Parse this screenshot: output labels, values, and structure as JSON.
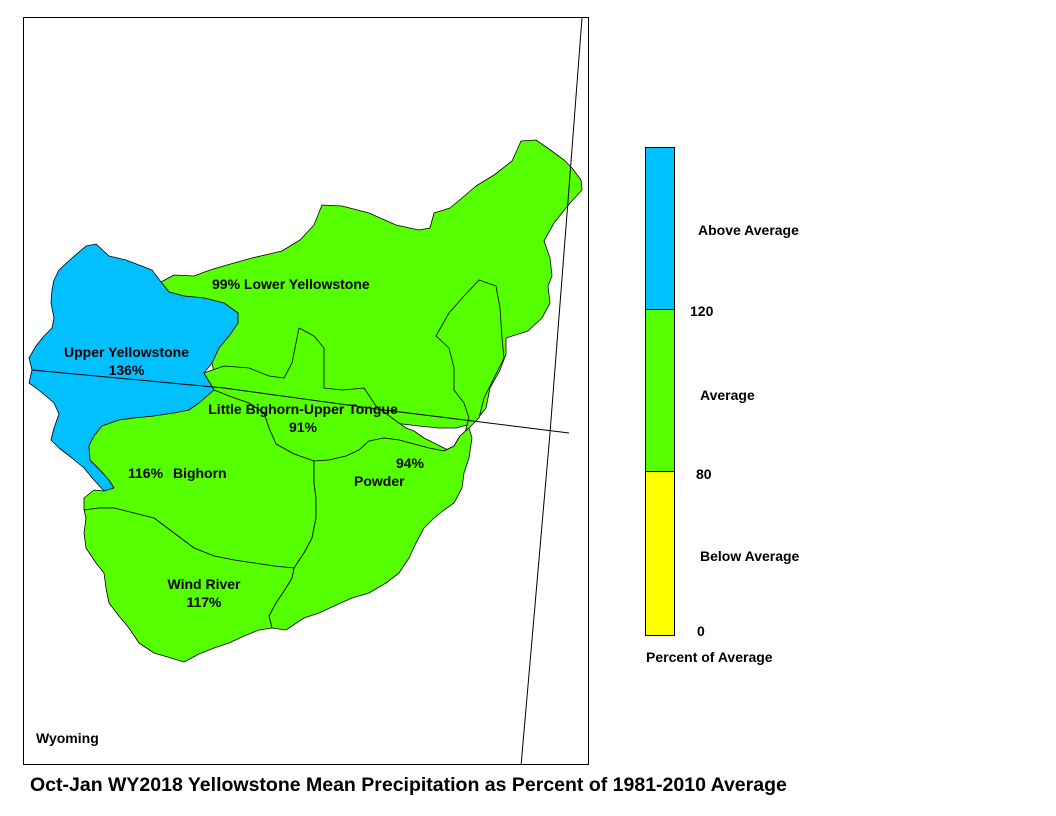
{
  "map": {
    "state_label": "Wyoming",
    "basins": [
      {
        "id": "upper-yellowstone",
        "name": "Upper Yellowstone",
        "percent": "136%",
        "category": "Above Average"
      },
      {
        "id": "lower-yellowstone",
        "name": "Lower Yellowstone",
        "percent": "99%",
        "category": "Average"
      },
      {
        "id": "little-bighorn-upper-tongue",
        "name": "Little Bighorn-Upper Tongue",
        "percent": "91%",
        "category": "Average"
      },
      {
        "id": "bighorn",
        "name": "Bighorn",
        "percent": "116%",
        "category": "Average"
      },
      {
        "id": "powder",
        "name": "Powder",
        "percent": "94%",
        "category": "Average"
      },
      {
        "id": "wind-river",
        "name": "Wind River",
        "percent": "117%",
        "category": "Average"
      }
    ],
    "colors": {
      "above": "#00c0ff",
      "average": "#55ff00",
      "below": "#ffff00"
    }
  },
  "legend": {
    "above_label": "Above Average",
    "average_label": "Average",
    "below_label": "Below Average",
    "tick_high": "120",
    "tick_low": "80",
    "tick_zero": "0",
    "title": "Percent of Average"
  },
  "caption": "Oct-Jan WY2018 Yellowstone Mean Precipitation as Percent of 1981-2010 Average"
}
